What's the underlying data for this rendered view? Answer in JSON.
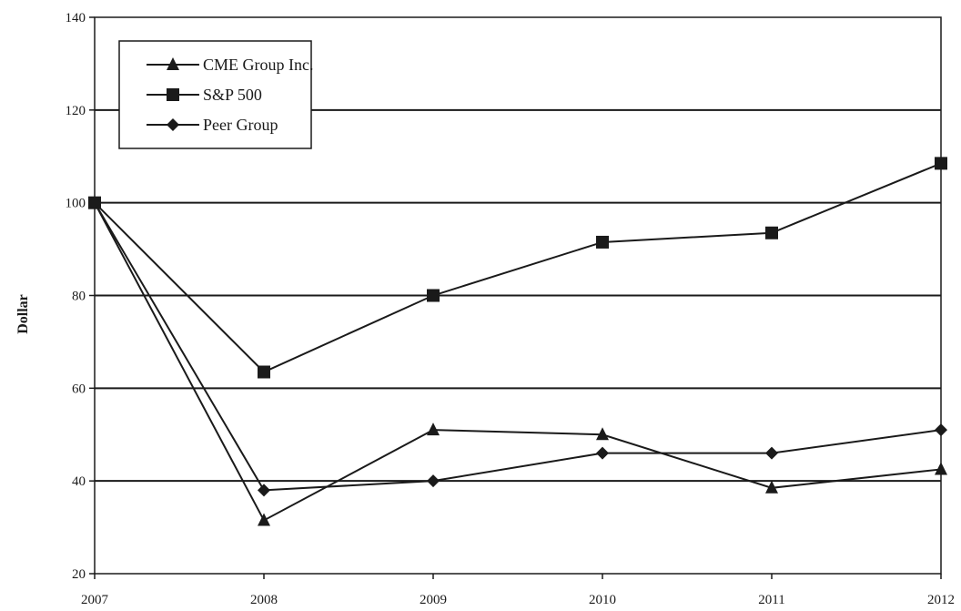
{
  "chart_data": {
    "type": "line",
    "ylabel": "Dollar",
    "xlabel": "",
    "x": [
      "2007",
      "2008",
      "2009",
      "2010",
      "2011",
      "2012"
    ],
    "ylim": [
      20,
      140
    ],
    "yticks": [
      20,
      40,
      60,
      80,
      100,
      120,
      140
    ],
    "grid": "horizontal",
    "legend_position": "top-left",
    "series": [
      {
        "name": "CME Group Inc.",
        "marker": "triangle",
        "values": [
          100,
          31.5,
          51,
          50,
          38.5,
          42.5
        ]
      },
      {
        "name": "S&P 500",
        "marker": "square",
        "values": [
          100,
          63.5,
          80,
          91.5,
          93.5,
          108.5
        ]
      },
      {
        "name": "Peer Group",
        "marker": "diamond",
        "values": [
          100,
          38,
          40,
          46,
          46,
          51
        ]
      }
    ],
    "colors": {
      "line": "#1a1a1a",
      "grid": "#1a1a1a",
      "background": "#ffffff"
    }
  }
}
